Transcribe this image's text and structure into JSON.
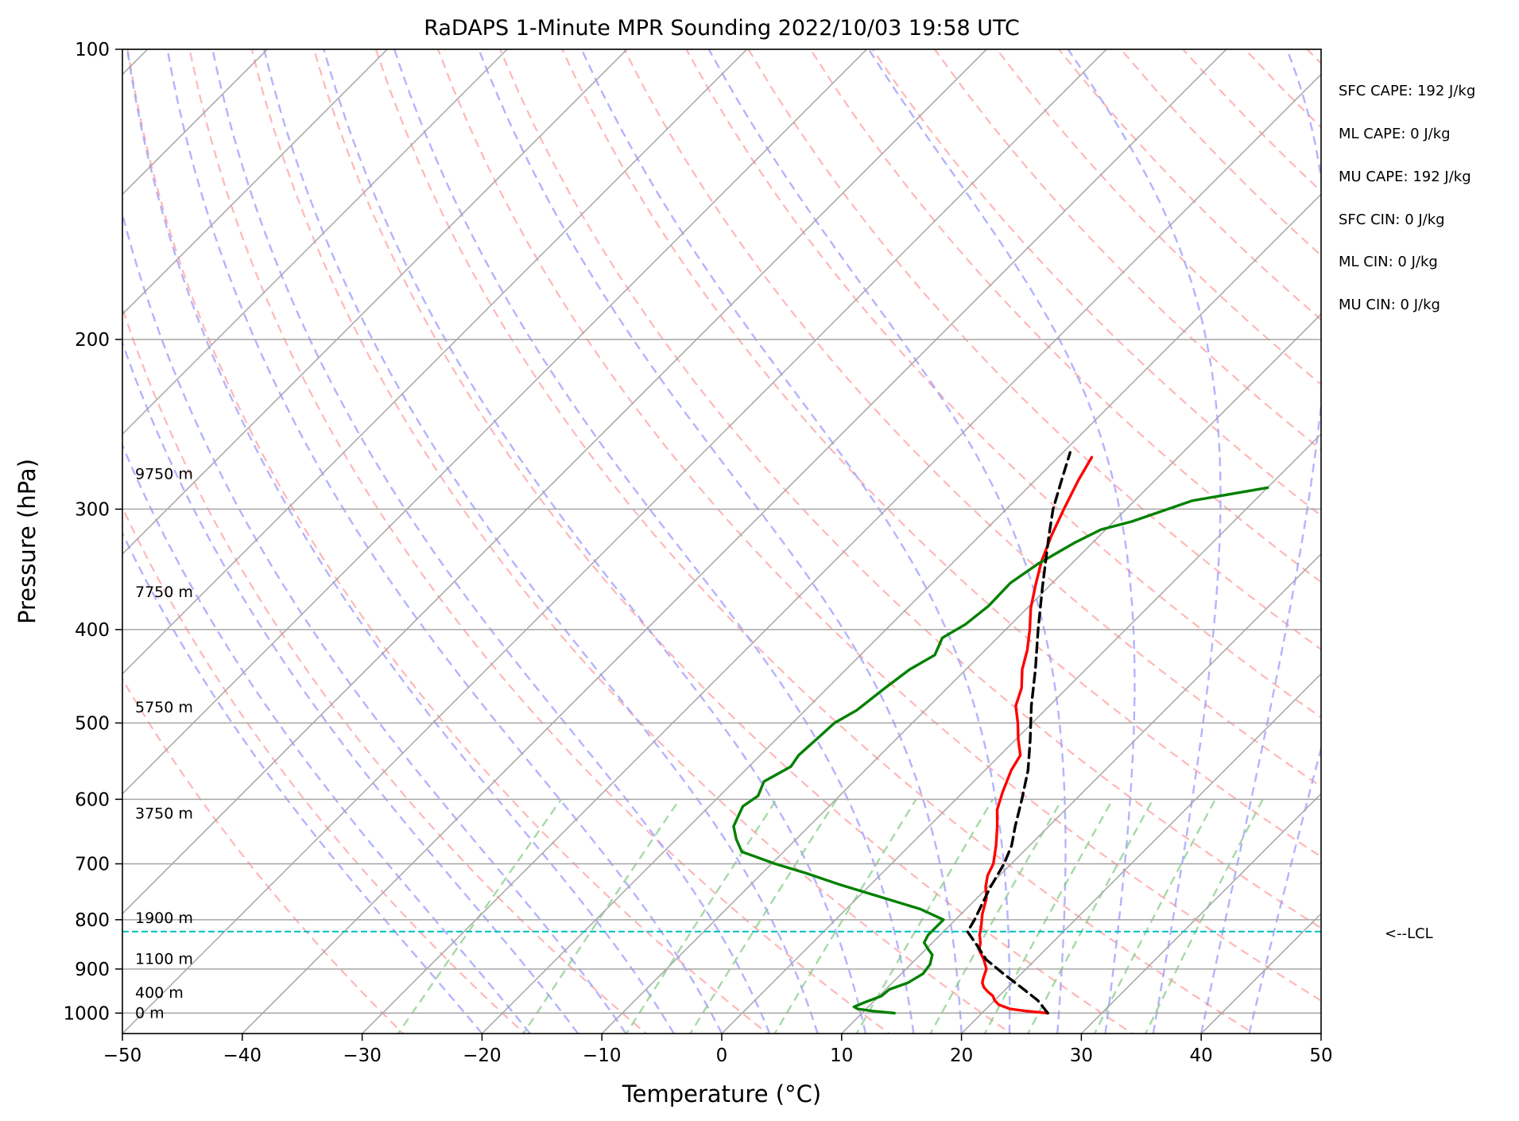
{
  "chart_data": {
    "type": "line",
    "title": "RaDAPS 1-Minute MPR Sounding 2022/10/03 19:58 UTC",
    "xlabel": "Temperature (°C)",
    "ylabel": "Pressure (hPa)",
    "xlim": [
      -50,
      50
    ],
    "ylim": [
      1050,
      100
    ],
    "y_scale": "log",
    "skew": "skew-T log-P",
    "x_ticks": [
      -50,
      -40,
      -30,
      -20,
      -10,
      0,
      10,
      20,
      30,
      40,
      50
    ],
    "x_tick_labels": [
      "−50",
      "−40",
      "−30",
      "−20",
      "−10",
      "0",
      "10",
      "20",
      "30",
      "40",
      "50"
    ],
    "y_ticks": [
      1000,
      900,
      800,
      700,
      600,
      500,
      400,
      300,
      200,
      100
    ],
    "y_tick_labels": [
      "1000",
      "900",
      "800",
      "700",
      "600",
      "500",
      "400",
      "300",
      "200",
      "100"
    ],
    "grid": true,
    "series": [
      {
        "role": "temperature",
        "color": "#ff0000",
        "style": "solid",
        "points": [
          [
            1000,
            25.5
          ],
          [
            995,
            23.5
          ],
          [
            990,
            22.0
          ],
          [
            980,
            20.7
          ],
          [
            970,
            20.0
          ],
          [
            960,
            19.5
          ],
          [
            950,
            18.7
          ],
          [
            940,
            18.0
          ],
          [
            930,
            17.5
          ],
          [
            920,
            17.2
          ],
          [
            900,
            16.7
          ],
          [
            880,
            15.7
          ],
          [
            860,
            14.5
          ],
          [
            845,
            14.0
          ],
          [
            830,
            13.3
          ],
          [
            810,
            12.6
          ],
          [
            790,
            11.8
          ],
          [
            760,
            10.8
          ],
          [
            740,
            9.8
          ],
          [
            720,
            9.0
          ],
          [
            700,
            8.5
          ],
          [
            670,
            7.2
          ],
          [
            640,
            5.7
          ],
          [
            615,
            4.3
          ],
          [
            590,
            3.3
          ],
          [
            560,
            2.2
          ],
          [
            540,
            1.7
          ],
          [
            520,
            0.2
          ],
          [
            500,
            -1.2
          ],
          [
            480,
            -2.8
          ],
          [
            460,
            -3.8
          ],
          [
            440,
            -5.3
          ],
          [
            420,
            -6.5
          ],
          [
            400,
            -8.0
          ],
          [
            380,
            -9.7
          ],
          [
            360,
            -11.2
          ],
          [
            340,
            -12.7
          ],
          [
            320,
            -14.0
          ],
          [
            300,
            -15.2
          ],
          [
            280,
            -16.4
          ],
          [
            265,
            -17.2
          ]
        ]
      },
      {
        "role": "dewpoint",
        "color": "#008000",
        "style": "solid",
        "points": [
          [
            1000,
            12.7
          ],
          [
            995,
            10.7
          ],
          [
            990,
            9.3
          ],
          [
            985,
            8.8
          ],
          [
            975,
            9.3
          ],
          [
            960,
            10.2
          ],
          [
            945,
            10.3
          ],
          [
            930,
            11.3
          ],
          [
            910,
            11.8
          ],
          [
            890,
            11.6
          ],
          [
            870,
            11.0
          ],
          [
            860,
            10.3
          ],
          [
            845,
            9.3
          ],
          [
            830,
            9.0
          ],
          [
            800,
            9.0
          ],
          [
            780,
            6.2
          ],
          [
            760,
            2.3
          ],
          [
            735,
            -2.7
          ],
          [
            715,
            -6.5
          ],
          [
            700,
            -9.7
          ],
          [
            680,
            -13.5
          ],
          [
            660,
            -15.0
          ],
          [
            640,
            -16.3
          ],
          [
            610,
            -17.2
          ],
          [
            595,
            -16.8
          ],
          [
            575,
            -17.5
          ],
          [
            555,
            -16.5
          ],
          [
            540,
            -16.8
          ],
          [
            515,
            -16.6
          ],
          [
            500,
            -16.5
          ],
          [
            485,
            -15.7
          ],
          [
            460,
            -15.2
          ],
          [
            440,
            -14.7
          ],
          [
            425,
            -13.8
          ],
          [
            408,
            -14.6
          ],
          [
            395,
            -13.8
          ],
          [
            378,
            -13.4
          ],
          [
            358,
            -13.5
          ],
          [
            342,
            -12.8
          ],
          [
            325,
            -11.5
          ],
          [
            315,
            -10.4
          ],
          [
            309,
            -8.5
          ],
          [
            294,
            -5.2
          ],
          [
            285,
            0.0
          ]
        ]
      },
      {
        "role": "parcel",
        "color": "#000000",
        "style": "dashed",
        "points": [
          [
            1000,
            25.5
          ],
          [
            970,
            23.6
          ],
          [
            940,
            21.1
          ],
          [
            910,
            18.5
          ],
          [
            880,
            15.9
          ],
          [
            850,
            13.9
          ],
          [
            823,
            12.0
          ],
          [
            800,
            11.6
          ],
          [
            770,
            10.9
          ],
          [
            740,
            10.2
          ],
          [
            700,
            9.4
          ],
          [
            670,
            8.5
          ],
          [
            640,
            7.2
          ],
          [
            600,
            5.5
          ],
          [
            560,
            3.6
          ],
          [
            520,
            1.2
          ],
          [
            480,
            -1.5
          ],
          [
            440,
            -4.2
          ],
          [
            400,
            -7.3
          ],
          [
            360,
            -10.6
          ],
          [
            320,
            -14.2
          ],
          [
            300,
            -16.1
          ],
          [
            280,
            -17.8
          ],
          [
            262,
            -19.4
          ]
        ]
      }
    ],
    "lcl_pressure": 823,
    "height_labels": [
      {
        "pressure": 276,
        "text": "9750 m"
      },
      {
        "pressure": 366,
        "text": "7750 m"
      },
      {
        "pressure": 482,
        "text": "5750 m"
      },
      {
        "pressure": 621,
        "text": "3750 m"
      },
      {
        "pressure": 797,
        "text": "1900 m"
      },
      {
        "pressure": 879,
        "text": "1100 m"
      },
      {
        "pressure": 953,
        "text": "400 m"
      },
      {
        "pressure": 1000,
        "text": "0 m"
      }
    ],
    "annotations": {
      "lcl_label": "<--LCL",
      "stats": [
        "SFC CAPE: 192 J/kg",
        "ML CAPE: 0 J/kg",
        "MU CAPE: 192 J/kg",
        "SFC CIN: 0 J/kg",
        "ML CIN: 0 J/kg",
        "MU CIN: 0 J/kg"
      ]
    },
    "colors": {
      "isotherms": "#a6a6a6",
      "isobars": "#a6a6a6",
      "dry_adiabats": "#ff9999",
      "moist_adiabats": "#9999ff",
      "mixing_ratio": "#88cc88",
      "lcl_line": "#00bfbf"
    }
  }
}
